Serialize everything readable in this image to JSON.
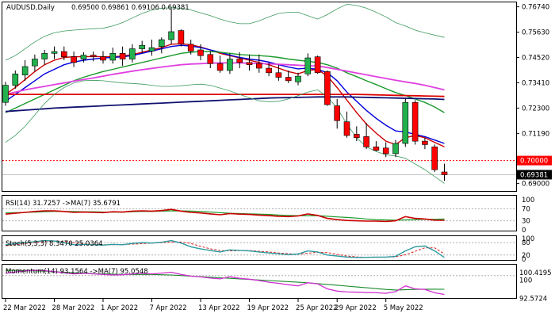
{
  "header": {
    "symbol_tf": "AUDUSD,Daily",
    "ohlc": "0.69500 0.69861 0.69106 0.69381"
  },
  "colors": {
    "bull": "#22b14c",
    "bear": "#ff0000",
    "ma_red": "#cc0000",
    "ma_blue": "#0000dd",
    "ma_green": "#1a9a2a",
    "ma_violet": "#e040e0",
    "ma_red_long": "#dd0000",
    "ma_navy": "#101070",
    "bollinger": "#3c9a5c",
    "level": "#ff0000",
    "grid": "#c8c8c8"
  },
  "price_axis": {
    "ticks": [
      "0.76740",
      "0.75630",
      "0.74520",
      "0.73410",
      "0.72300",
      "0.71190",
      "0.69000"
    ]
  },
  "level_tag": "0.70000",
  "current_tag": "0.69381",
  "rsi": {
    "label": "RSI(14) 31.7257  ->MA(7) 35.6791",
    "ticks": [
      "100",
      "70",
      "30",
      "0"
    ]
  },
  "stoch": {
    "label": "Stoch(5,3,3) 8.3470 25.0364",
    "ticks": [
      "100",
      "80",
      "20",
      "0"
    ]
  },
  "momentum": {
    "label": "Momentum(14) 93.1564  ->MA(7) 95.0548",
    "ticks": [
      "100.4195",
      "100",
      "92.5724"
    ]
  },
  "date_axis": [
    "22 Mar 2022",
    "28 Mar 2022",
    "1 Apr 2022",
    "7 Apr 2022",
    "13 Apr 2022",
    "19 Apr 2022",
    "25 Apr 2022",
    "29 Apr 2022",
    "5 May 2022"
  ],
  "chart_data": {
    "type": "candlestick",
    "title": "AUDUSD,Daily",
    "ylim": [
      0.687,
      0.769
    ],
    "candles": [
      {
        "o": 0.7255,
        "h": 0.7345,
        "l": 0.724,
        "c": 0.733
      },
      {
        "o": 0.733,
        "h": 0.7395,
        "l": 0.7315,
        "c": 0.738
      },
      {
        "o": 0.7375,
        "h": 0.744,
        "l": 0.735,
        "c": 0.7412
      },
      {
        "o": 0.7415,
        "h": 0.7465,
        "l": 0.739,
        "c": 0.7445
      },
      {
        "o": 0.7445,
        "h": 0.7485,
        "l": 0.742,
        "c": 0.747
      },
      {
        "o": 0.747,
        "h": 0.75,
        "l": 0.7445,
        "c": 0.7478
      },
      {
        "o": 0.7478,
        "h": 0.75,
        "l": 0.744,
        "c": 0.7455
      },
      {
        "o": 0.7455,
        "h": 0.7478,
        "l": 0.741,
        "c": 0.743
      },
      {
        "o": 0.7445,
        "h": 0.7475,
        "l": 0.743,
        "c": 0.7462
      },
      {
        "o": 0.7462,
        "h": 0.7478,
        "l": 0.7435,
        "c": 0.7455
      },
      {
        "o": 0.7455,
        "h": 0.748,
        "l": 0.7425,
        "c": 0.744
      },
      {
        "o": 0.744,
        "h": 0.7495,
        "l": 0.7425,
        "c": 0.747
      },
      {
        "o": 0.747,
        "h": 0.75,
        "l": 0.7415,
        "c": 0.7445
      },
      {
        "o": 0.7445,
        "h": 0.751,
        "l": 0.743,
        "c": 0.749
      },
      {
        "o": 0.749,
        "h": 0.7525,
        "l": 0.747,
        "c": 0.7505
      },
      {
        "o": 0.748,
        "h": 0.753,
        "l": 0.746,
        "c": 0.7495
      },
      {
        "o": 0.75,
        "h": 0.754,
        "l": 0.747,
        "c": 0.753
      },
      {
        "o": 0.753,
        "h": 0.7665,
        "l": 0.751,
        "c": 0.7565
      },
      {
        "o": 0.757,
        "h": 0.7575,
        "l": 0.75,
        "c": 0.751
      },
      {
        "o": 0.751,
        "h": 0.753,
        "l": 0.7465,
        "c": 0.748
      },
      {
        "o": 0.7485,
        "h": 0.751,
        "l": 0.744,
        "c": 0.746
      },
      {
        "o": 0.7465,
        "h": 0.748,
        "l": 0.7405,
        "c": 0.7425
      },
      {
        "o": 0.7425,
        "h": 0.746,
        "l": 0.7385,
        "c": 0.7395
      },
      {
        "o": 0.7395,
        "h": 0.747,
        "l": 0.738,
        "c": 0.7445
      },
      {
        "o": 0.7445,
        "h": 0.7475,
        "l": 0.7405,
        "c": 0.743
      },
      {
        "o": 0.743,
        "h": 0.7465,
        "l": 0.7395,
        "c": 0.742
      },
      {
        "o": 0.7425,
        "h": 0.7465,
        "l": 0.7385,
        "c": 0.7405
      },
      {
        "o": 0.7405,
        "h": 0.743,
        "l": 0.737,
        "c": 0.7385
      },
      {
        "o": 0.7385,
        "h": 0.742,
        "l": 0.735,
        "c": 0.7365
      },
      {
        "o": 0.7365,
        "h": 0.7395,
        "l": 0.734,
        "c": 0.735
      },
      {
        "o": 0.7345,
        "h": 0.7385,
        "l": 0.733,
        "c": 0.737
      },
      {
        "o": 0.738,
        "h": 0.747,
        "l": 0.737,
        "c": 0.745
      },
      {
        "o": 0.7455,
        "h": 0.746,
        "l": 0.738,
        "c": 0.7385
      },
      {
        "o": 0.739,
        "h": 0.7395,
        "l": 0.724,
        "c": 0.7245
      },
      {
        "o": 0.724,
        "h": 0.727,
        "l": 0.714,
        "c": 0.7175
      },
      {
        "o": 0.717,
        "h": 0.7215,
        "l": 0.71,
        "c": 0.711
      },
      {
        "o": 0.7115,
        "h": 0.715,
        "l": 0.7085,
        "c": 0.71
      },
      {
        "o": 0.7105,
        "h": 0.7165,
        "l": 0.705,
        "c": 0.706
      },
      {
        "o": 0.706,
        "h": 0.7085,
        "l": 0.704,
        "c": 0.7045
      },
      {
        "o": 0.7055,
        "h": 0.708,
        "l": 0.7015,
        "c": 0.703
      },
      {
        "o": 0.703,
        "h": 0.709,
        "l": 0.7015,
        "c": 0.7075
      },
      {
        "o": 0.7075,
        "h": 0.7275,
        "l": 0.706,
        "c": 0.7255
      },
      {
        "o": 0.7255,
        "h": 0.7265,
        "l": 0.707,
        "c": 0.7085
      },
      {
        "o": 0.7085,
        "h": 0.71,
        "l": 0.705,
        "c": 0.707
      },
      {
        "o": 0.706,
        "h": 0.707,
        "l": 0.695,
        "c": 0.696
      },
      {
        "o": 0.695,
        "h": 0.6986,
        "l": 0.6911,
        "c": 0.6938
      }
    ],
    "moving_averages": [
      {
        "name": "ma_red",
        "color": "#cc0000",
        "values": [
          0.729,
          0.732,
          0.7355,
          0.739,
          0.742,
          0.744,
          0.7452,
          0.7455,
          0.7455,
          0.7456,
          0.7455,
          0.7455,
          0.7458,
          0.7465,
          0.7475,
          0.7485,
          0.7495,
          0.751,
          0.7512,
          0.7508,
          0.7498,
          0.7485,
          0.747,
          0.746,
          0.745,
          0.744,
          0.743,
          0.742,
          0.7405,
          0.739,
          0.738,
          0.7395,
          0.74,
          0.737,
          0.732,
          0.7265,
          0.721,
          0.716,
          0.712,
          0.7085,
          0.707,
          0.71,
          0.711,
          0.71,
          0.708,
          0.706
        ]
      },
      {
        "name": "ma_blue",
        "color": "#0000dd",
        "values": [
          0.726,
          0.729,
          0.732,
          0.735,
          0.738,
          0.74,
          0.742,
          0.7432,
          0.744,
          0.7445,
          0.745,
          0.7452,
          0.7455,
          0.746,
          0.747,
          0.748,
          0.749,
          0.75,
          0.7505,
          0.7502,
          0.7495,
          0.7485,
          0.7475,
          0.7462,
          0.7452,
          0.7445,
          0.744,
          0.7432,
          0.742,
          0.741,
          0.7402,
          0.7405,
          0.74,
          0.7385,
          0.735,
          0.73,
          0.726,
          0.722,
          0.7185,
          0.7155,
          0.713,
          0.7125,
          0.7115,
          0.7105,
          0.709,
          0.7075
        ]
      },
      {
        "name": "ma_green",
        "color": "#1a9a2a",
        "values": [
          0.721,
          0.723,
          0.725,
          0.727,
          0.729,
          0.731,
          0.733,
          0.735,
          0.7365,
          0.7378,
          0.739,
          0.74,
          0.741,
          0.742,
          0.743,
          0.744,
          0.745,
          0.746,
          0.747,
          0.7475,
          0.7478,
          0.7478,
          0.7475,
          0.747,
          0.7465,
          0.7462,
          0.746,
          0.7457,
          0.7452,
          0.7445,
          0.744,
          0.7435,
          0.743,
          0.742,
          0.7405,
          0.7385,
          0.7368,
          0.735,
          0.7333,
          0.7315,
          0.7298,
          0.7285,
          0.727,
          0.7255,
          0.7235,
          0.721
        ]
      },
      {
        "name": "ma_violet",
        "color": "#e040e0",
        "values": [
          0.729,
          0.73,
          0.731,
          0.7318,
          0.7325,
          0.7333,
          0.734,
          0.7348,
          0.7355,
          0.7362,
          0.737,
          0.7378,
          0.7385,
          0.7392,
          0.7398,
          0.7404,
          0.741,
          0.7415,
          0.742,
          0.7423,
          0.7425,
          0.7427,
          0.7428,
          0.7428,
          0.7428,
          0.7427,
          0.7426,
          0.7424,
          0.7422,
          0.742,
          0.7418,
          0.7416,
          0.7414,
          0.7408,
          0.74,
          0.7392,
          0.7384,
          0.7376,
          0.7368,
          0.736,
          0.7352,
          0.7345,
          0.7338,
          0.733,
          0.732,
          0.731
        ]
      },
      {
        "name": "ma_red_long",
        "color": "#dd0000",
        "values": [
          0.729,
          0.729,
          0.729,
          0.729,
          0.729,
          0.729,
          0.729,
          0.729,
          0.729,
          0.729,
          0.729,
          0.729,
          0.729,
          0.729,
          0.729,
          0.729,
          0.729,
          0.729,
          0.729,
          0.729,
          0.729,
          0.729,
          0.729,
          0.729,
          0.729,
          0.729,
          0.729,
          0.729,
          0.729,
          0.729,
          0.729,
          0.729,
          0.729,
          0.729,
          0.729,
          0.729,
          0.729,
          0.7289,
          0.7288,
          0.7287,
          0.7286,
          0.7285,
          0.7284,
          0.7283,
          0.7282,
          0.7281
        ]
      },
      {
        "name": "ma_navy",
        "color": "#101070",
        "values": [
          0.7215,
          0.7218,
          0.7221,
          0.7224,
          0.7227,
          0.723,
          0.7232,
          0.7234,
          0.7236,
          0.7238,
          0.724,
          0.7242,
          0.7244,
          0.7246,
          0.7248,
          0.725,
          0.7252,
          0.7254,
          0.7256,
          0.7258,
          0.726,
          0.7262,
          0.7264,
          0.7266,
          0.7268,
          0.727,
          0.7272,
          0.7274,
          0.7275,
          0.7276,
          0.7277,
          0.7278,
          0.7279,
          0.7279,
          0.7279,
          0.7279,
          0.7278,
          0.7277,
          0.7276,
          0.7275,
          0.7274,
          0.7273,
          0.7272,
          0.7271,
          0.727,
          0.7268
        ]
      },
      {
        "name": "bollinger_upper",
        "color": "#3c9a5c",
        "values": [
          0.744,
          0.746,
          0.749,
          0.752,
          0.7545,
          0.756,
          0.7568,
          0.7572,
          0.7575,
          0.7578,
          0.758,
          0.759,
          0.7605,
          0.7625,
          0.7645,
          0.766,
          0.7668,
          0.767,
          0.7668,
          0.766,
          0.7648,
          0.7635,
          0.762,
          0.7608,
          0.76,
          0.76,
          0.7612,
          0.763,
          0.7645,
          0.765,
          0.765,
          0.7635,
          0.762,
          0.764,
          0.7665,
          0.7685,
          0.768,
          0.7668,
          0.765,
          0.763,
          0.7605,
          0.759,
          0.7572,
          0.756,
          0.755,
          0.754
        ]
      },
      {
        "name": "bollinger_lower",
        "color": "#3c9a5c",
        "values": [
          0.708,
          0.711,
          0.715,
          0.72,
          0.725,
          0.729,
          0.732,
          0.734,
          0.735,
          0.7352,
          0.735,
          0.7345,
          0.734,
          0.7338,
          0.7335,
          0.733,
          0.7325,
          0.7325,
          0.7328,
          0.7332,
          0.7335,
          0.733,
          0.7318,
          0.7305,
          0.729,
          0.7275,
          0.7262,
          0.7258,
          0.726,
          0.727,
          0.7285,
          0.73,
          0.731,
          0.728,
          0.723,
          0.716,
          0.71,
          0.706,
          0.704,
          0.7025,
          0.702,
          0.701,
          0.6985,
          0.696,
          0.693,
          0.69
        ]
      }
    ],
    "horizontal_level": 0.7,
    "rsi_values": {
      "rsi": [
        52,
        55,
        58,
        61,
        63,
        63,
        61,
        58,
        59,
        58,
        57,
        60,
        59,
        62,
        63,
        62,
        64,
        68,
        62,
        58,
        56,
        53,
        50,
        54,
        52,
        51,
        49,
        47,
        45,
        44,
        46,
        53,
        48,
        38,
        34,
        31,
        30,
        29,
        29,
        28,
        30,
        44,
        38,
        36,
        32,
        31.7
      ],
      "ma": [
        56,
        57,
        58,
        59,
        60,
        61,
        61,
        61,
        60,
        60,
        59,
        59,
        59,
        60,
        61,
        61,
        62,
        63,
        63,
        62,
        61,
        59,
        57,
        55,
        54,
        53,
        52,
        51,
        49,
        48,
        47,
        47,
        47,
        45,
        43,
        41,
        39,
        36,
        34,
        33,
        32,
        33,
        34,
        35,
        35,
        35.7
      ]
    },
    "stoch_values": {
      "k": [
        70,
        75,
        80,
        85,
        90,
        88,
        80,
        70,
        72,
        70,
        68,
        72,
        70,
        76,
        80,
        78,
        82,
        90,
        78,
        60,
        50,
        42,
        35,
        45,
        42,
        40,
        35,
        30,
        26,
        22,
        25,
        40,
        35,
        20,
        15,
        10,
        8,
        9,
        10,
        10,
        14,
        40,
        60,
        64,
        40,
        8.3
      ],
      "d": [
        65,
        70,
        75,
        80,
        85,
        88,
        86,
        80,
        74,
        72,
        70,
        70,
        71,
        73,
        75,
        78,
        80,
        83,
        83,
        76,
        62,
        50,
        42,
        40,
        41,
        42,
        38,
        35,
        30,
        26,
        24,
        29,
        33,
        32,
        23,
        15,
        11,
        9,
        9,
        10,
        11,
        21,
        38,
        55,
        55,
        25.0
      ]
    },
    "momentum_values": {
      "m": [
        100.8,
        101.3,
        101.7,
        101.9,
        101.8,
        101.4,
        101.0,
        100.6,
        100.8,
        100.6,
        100.4,
        100.2,
        100.3,
        100.6,
        100.8,
        100.6,
        100.9,
        101.2,
        100.4,
        99.8,
        99.5,
        99.1,
        98.8,
        99.6,
        99.0,
        98.7,
        98.2,
        97.6,
        97.2,
        96.7,
        96.3,
        97.4,
        97.0,
        95.2,
        94.4,
        94.1,
        94.0,
        93.9,
        93.8,
        93.6,
        94.2,
        96.3,
        95.2,
        95.0,
        93.8,
        93.2
      ],
      "ma": [
        101.9,
        101.9,
        101.8,
        101.7,
        101.6,
        101.4,
        101.2,
        101.0,
        100.9,
        100.7,
        100.6,
        100.5,
        100.4,
        100.4,
        100.4,
        100.4,
        100.3,
        100.2,
        100.0,
        99.8,
        99.6,
        99.4,
        99.2,
        99.0,
        98.8,
        98.6,
        98.4,
        98.2,
        98.0,
        97.8,
        97.6,
        97.4,
        97.1,
        96.8,
        96.5,
        96.2,
        95.9,
        95.6,
        95.3,
        95.0,
        94.8,
        94.9,
        95.0,
        95.1,
        95.1,
        95.05
      ]
    }
  }
}
